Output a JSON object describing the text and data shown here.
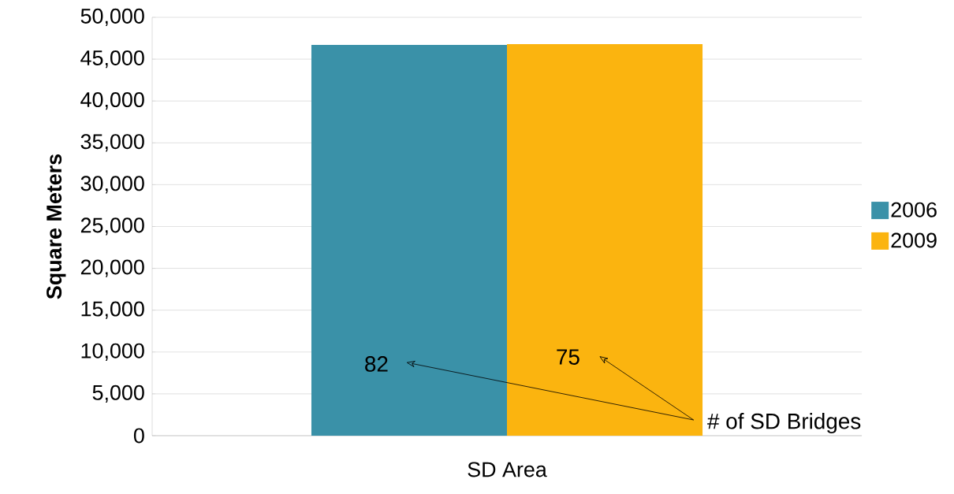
{
  "chart_data": {
    "type": "bar",
    "ylabel": "Square Meters",
    "categories": [
      "SD Area"
    ],
    "series": [
      {
        "name": "2006",
        "color": "#3a91a8",
        "values": [
          46700
        ]
      },
      {
        "name": "2009",
        "color": "#fbb40f",
        "values": [
          46800
        ]
      }
    ],
    "ylim": [
      0,
      50000
    ],
    "yticks": [
      0,
      {
        "value": 5000,
        "label": "5,000"
      },
      {
        "value": 10000,
        "label": "10,000"
      },
      {
        "value": 15000,
        "label": "15,000"
      },
      {
        "value": 20000,
        "label": "20,000"
      },
      {
        "value": 25000,
        "label": "25,000"
      },
      {
        "value": 30000,
        "label": "30,000"
      },
      {
        "value": 35000,
        "label": "35,000"
      },
      {
        "value": 40000,
        "label": "40,000"
      },
      {
        "value": 45000,
        "label": "45,000"
      },
      {
        "value": 50000,
        "label": "50,000"
      }
    ],
    "grid": "y",
    "legend": "right",
    "annotations": [
      "82",
      "75",
      "# of SD Bridges"
    ]
  }
}
